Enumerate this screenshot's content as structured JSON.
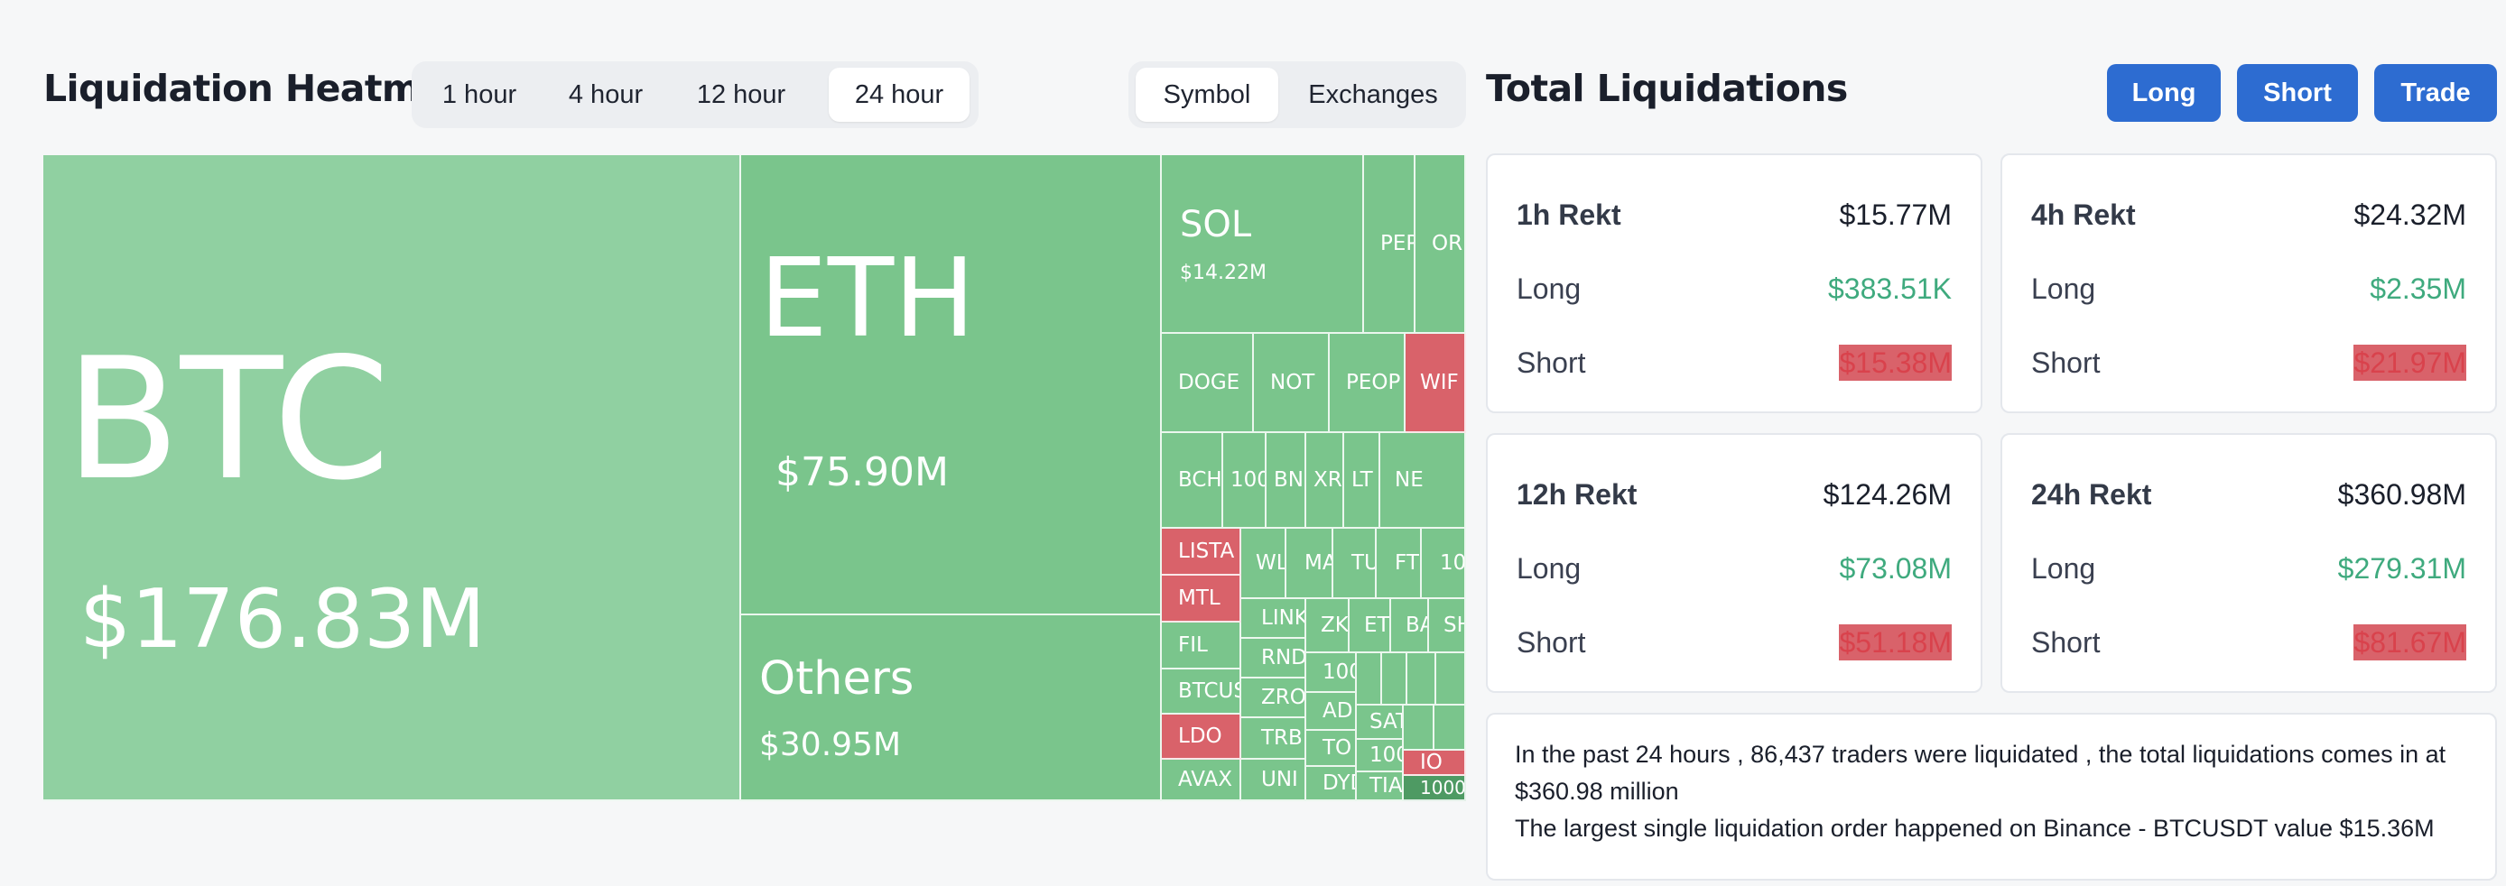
{
  "heatmap": {
    "title": "Liquidation Heatmap",
    "timeframes": [
      "1 hour",
      "4 hour",
      "12 hour",
      "24 hour"
    ],
    "active_timeframe": "24 hour",
    "views": [
      "Symbol",
      "Exchanges"
    ],
    "active_view": "Symbol",
    "cells": {
      "btc": {
        "symbol": "BTC",
        "value": "$176.83M"
      },
      "eth": {
        "symbol": "ETH",
        "value": "$75.90M"
      },
      "others": {
        "symbol": "Others",
        "value": "$30.95M"
      },
      "sol": {
        "symbol": "SOL",
        "value": "$14.22M"
      },
      "pepe": "PEP",
      "ordi": "OR",
      "doge": "DOGE",
      "not": "NOT",
      "people": "PEOP",
      "wif": "WIF",
      "bch": "BCH",
      "c1000": "100",
      "bnb": "BN",
      "xrp": "XR",
      "ltc": "LT",
      "near": "NE",
      "lista": "LISTA",
      "wld": "WL",
      "matic": "MA",
      "tu": "TU",
      "ftm": "FT",
      "c1000b": "10",
      "mtl": "MTL",
      "link": "LINK",
      "zk": "ZK",
      "etc": "ET",
      "ba": "BA",
      "sh": "SH",
      "fil": "FIL",
      "rndr": "RND",
      "c100": "100",
      "btcst": "BTCUS",
      "zro": "ZRO",
      "ada": "AD",
      "ldo": "LDO",
      "trb": "TRB",
      "ton": "TO",
      "sats": "SAT",
      "c100b": "100",
      "avax": "AVAX",
      "uni": "UNI",
      "dydx": "DYD",
      "tia": "TIA",
      "io": "IO",
      "c1000c": "1000"
    }
  },
  "totals": {
    "title": "Total Liquidations",
    "buttons": {
      "long": "Long",
      "short": "Short",
      "trade": "Trade"
    },
    "cards": [
      {
        "label": "1h Rekt",
        "total": "$15.77M",
        "long_label": "Long",
        "long": "$383.51K",
        "short_label": "Short",
        "short": "$15.38M"
      },
      {
        "label": "4h Rekt",
        "total": "$24.32M",
        "long_label": "Long",
        "long": "$2.35M",
        "short_label": "Short",
        "short": "$21.97M"
      },
      {
        "label": "12h Rekt",
        "total": "$124.26M",
        "long_label": "Long",
        "long": "$73.08M",
        "short_label": "Short",
        "short": "$51.18M"
      },
      {
        "label": "24h Rekt",
        "total": "$360.98M",
        "long_label": "Long",
        "long": "$279.31M",
        "short_label": "Short",
        "short": "$81.67M"
      }
    ],
    "summary_line1": "In the past 24 hours , 86,437 traders were liquidated , the total liquidations comes in at $360.98 million",
    "summary_line2": "The largest single liquidation order happened on Binance - BTCUSDT value $15.36M"
  },
  "colors": {
    "green_light": "#90d0a1",
    "green": "#7ac58c",
    "red": "#d9626a",
    "accent": "#2d6cd1",
    "long_text": "#3faa7e",
    "short_text": "#d9424c"
  }
}
